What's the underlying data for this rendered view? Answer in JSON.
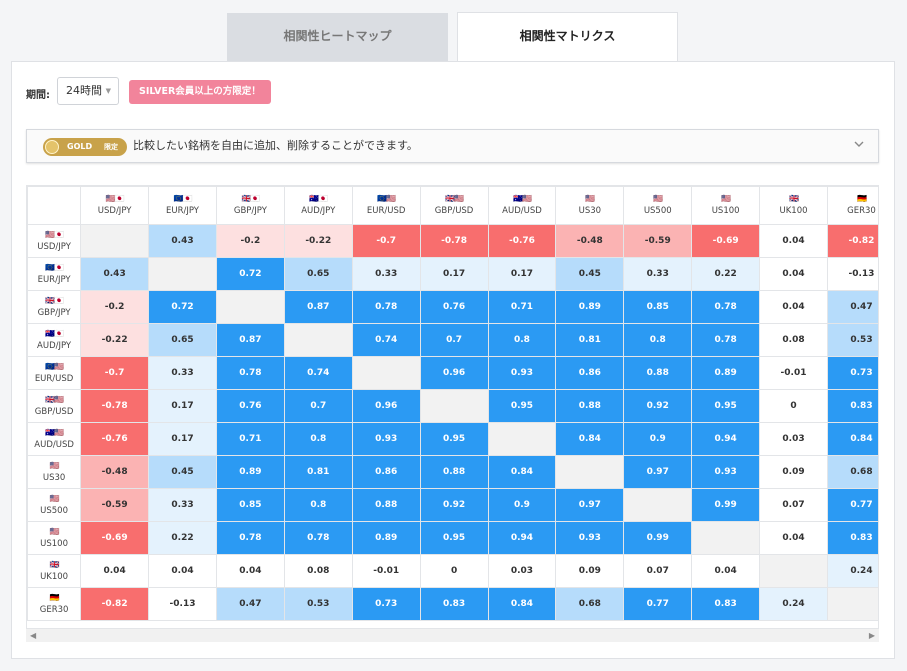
{
  "tabs": [
    {
      "label": "相関性ヒートマップ",
      "active": false
    },
    {
      "label": "相関性マトリクス",
      "active": true
    }
  ],
  "controls": {
    "period_label": "期間:",
    "period_value": "24時間",
    "silver_badge": "SILVER会員以上の方限定！"
  },
  "notice": {
    "gold_label": "GOLD",
    "gold_sub": "限定",
    "text": "比較したい銘柄を自由に追加、削除することができます。"
  },
  "colors": {
    "strong_pos": "#2b9af3",
    "mid_pos": "#b6dcfb",
    "weak_pos": "#e4f2fd",
    "weak_neg": "#fde0e0",
    "mid_neg": "#fbb3b3",
    "strong_neg": "#f86e6e",
    "diag": "#f2f2f2"
  },
  "matrix": {
    "columns": [
      {
        "label": "USD/JPY",
        "flag": "🇺🇸🇯🇵"
      },
      {
        "label": "EUR/JPY",
        "flag": "🇪🇺🇯🇵"
      },
      {
        "label": "GBP/JPY",
        "flag": "🇬🇧🇯🇵"
      },
      {
        "label": "AUD/JPY",
        "flag": "🇦🇺🇯🇵"
      },
      {
        "label": "EUR/USD",
        "flag": "🇪🇺🇺🇸"
      },
      {
        "label": "GBP/USD",
        "flag": "🇬🇧🇺🇸"
      },
      {
        "label": "AUD/USD",
        "flag": "🇦🇺🇺🇸"
      },
      {
        "label": "US30",
        "flag": "🇺🇸"
      },
      {
        "label": "US500",
        "flag": "🇺🇸"
      },
      {
        "label": "US100",
        "flag": "🇺🇸"
      },
      {
        "label": "UK100",
        "flag": "🇬🇧"
      },
      {
        "label": "GER30",
        "flag": "🇩🇪"
      }
    ],
    "rows": [
      {
        "label": "USD/JPY",
        "flag": "🇺🇸🇯🇵",
        "values": [
          null,
          "0.43",
          "-0.2",
          "-0.22",
          "-0.7",
          "-0.78",
          "-0.76",
          "-0.48",
          "-0.59",
          "-0.69",
          "0.04",
          "-0.82"
        ]
      },
      {
        "label": "EUR/JPY",
        "flag": "🇪🇺🇯🇵",
        "values": [
          "0.43",
          null,
          "0.72",
          "0.65",
          "0.33",
          "0.17",
          "0.17",
          "0.45",
          "0.33",
          "0.22",
          "0.04",
          "-0.13"
        ]
      },
      {
        "label": "GBP/JPY",
        "flag": "🇬🇧🇯🇵",
        "values": [
          "-0.2",
          "0.72",
          null,
          "0.87",
          "0.78",
          "0.76",
          "0.71",
          "0.89",
          "0.85",
          "0.78",
          "0.04",
          "0.47"
        ]
      },
      {
        "label": "AUD/JPY",
        "flag": "🇦🇺🇯🇵",
        "values": [
          "-0.22",
          "0.65",
          "0.87",
          null,
          "0.74",
          "0.7",
          "0.8",
          "0.81",
          "0.8",
          "0.78",
          "0.08",
          "0.53"
        ]
      },
      {
        "label": "EUR/USD",
        "flag": "🇪🇺🇺🇸",
        "values": [
          "-0.7",
          "0.33",
          "0.78",
          "0.74",
          null,
          "0.96",
          "0.93",
          "0.86",
          "0.88",
          "0.89",
          "-0.01",
          "0.73"
        ]
      },
      {
        "label": "GBP/USD",
        "flag": "🇬🇧🇺🇸",
        "values": [
          "-0.78",
          "0.17",
          "0.76",
          "0.7",
          "0.96",
          null,
          "0.95",
          "0.88",
          "0.92",
          "0.95",
          "0",
          "0.83"
        ]
      },
      {
        "label": "AUD/USD",
        "flag": "🇦🇺🇺🇸",
        "values": [
          "-0.76",
          "0.17",
          "0.71",
          "0.8",
          "0.93",
          "0.95",
          null,
          "0.84",
          "0.9",
          "0.94",
          "0.03",
          "0.84"
        ]
      },
      {
        "label": "US30",
        "flag": "🇺🇸",
        "values": [
          "-0.48",
          "0.45",
          "0.89",
          "0.81",
          "0.86",
          "0.88",
          "0.84",
          null,
          "0.97",
          "0.93",
          "0.09",
          "0.68"
        ]
      },
      {
        "label": "US500",
        "flag": "🇺🇸",
        "values": [
          "-0.59",
          "0.33",
          "0.85",
          "0.8",
          "0.88",
          "0.92",
          "0.9",
          "0.97",
          null,
          "0.99",
          "0.07",
          "0.77"
        ]
      },
      {
        "label": "US100",
        "flag": "🇺🇸",
        "values": [
          "-0.69",
          "0.22",
          "0.78",
          "0.78",
          "0.89",
          "0.95",
          "0.94",
          "0.93",
          "0.99",
          null,
          "0.04",
          "0.83"
        ]
      },
      {
        "label": "UK100",
        "flag": "🇬🇧",
        "values": [
          "0.04",
          "0.04",
          "0.04",
          "0.08",
          "-0.01",
          "0",
          "0.03",
          "0.09",
          "0.07",
          "0.04",
          null,
          "0.24"
        ]
      },
      {
        "label": "GER30",
        "flag": "🇩🇪",
        "values": [
          "-0.82",
          "-0.13",
          "0.47",
          "0.53",
          "0.73",
          "0.83",
          "0.84",
          "0.68",
          "0.77",
          "0.83",
          "0.24",
          null
        ]
      }
    ]
  }
}
